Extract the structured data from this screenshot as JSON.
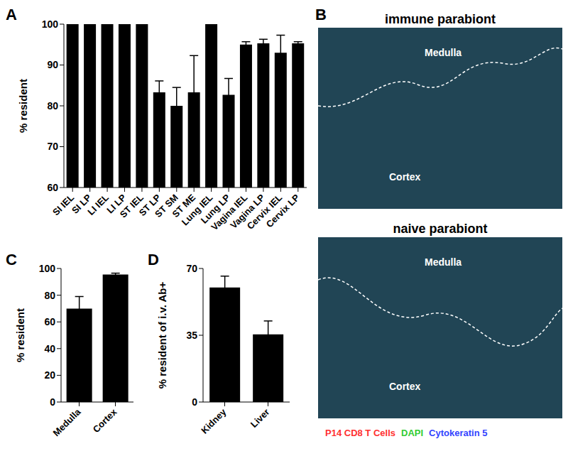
{
  "chart_data": [
    {
      "panel": "A",
      "type": "bar",
      "categories": [
        "SI IEL",
        "SI LP",
        "LI IEL",
        "LI LP",
        "ST IEL",
        "ST LP",
        "ST SM",
        "ST ME",
        "Lung IEL",
        "Lung LP",
        "Vagina IEL",
        "Vagina LP",
        "Cervix IEL",
        "Cervix LP"
      ],
      "values": [
        100,
        100,
        100,
        100,
        100,
        83.3,
        80,
        83.3,
        100,
        82.7,
        95,
        95.3,
        93,
        95.3
      ],
      "errors": [
        0,
        0,
        0,
        0,
        0,
        2.8,
        4.5,
        9,
        0,
        4,
        0.7,
        1,
        4.3,
        0.4
      ],
      "color": "#000000",
      "ylabel": "% resident",
      "ylim": [
        60,
        100
      ],
      "yticks": [
        60,
        70,
        80,
        90,
        100
      ]
    },
    {
      "panel": "B",
      "type": "image",
      "panels": [
        {
          "title": "immune parabiont",
          "labels": [
            "Medulla",
            "Cortex"
          ]
        },
        {
          "title": "naive parabiont",
          "labels": [
            "Medulla",
            "Cortex"
          ]
        }
      ],
      "legend_items": [
        {
          "name": "P14 CD8 T Cells",
          "color": "#ff3030"
        },
        {
          "name": "DAPI",
          "color": "#33cc33"
        },
        {
          "name": "Cytokeratin 5",
          "color": "#3344ff"
        }
      ]
    },
    {
      "panel": "C",
      "type": "bar",
      "categories": [
        "Medulla",
        "Cortex"
      ],
      "values": [
        70,
        95.5
      ],
      "errors": [
        9,
        1
      ],
      "color": "#000000",
      "ylabel": "% resident",
      "ylim": [
        0,
        100
      ],
      "yticks": [
        0,
        20,
        40,
        60,
        80,
        100
      ]
    },
    {
      "panel": "D",
      "type": "bar",
      "categories": [
        "Kidney",
        "Liver"
      ],
      "values": [
        60,
        35.5
      ],
      "errors": [
        6,
        7
      ],
      "color": "#000000",
      "ylabel": "% resident of i.v. Ab+",
      "ylim": [
        0,
        70
      ],
      "yticks": [
        0,
        35,
        70
      ]
    }
  ]
}
